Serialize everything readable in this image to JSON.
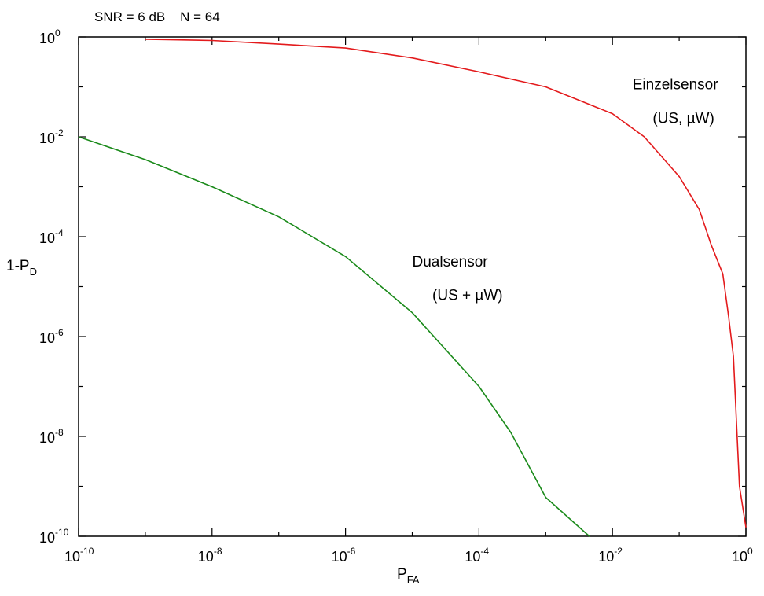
{
  "chart_data": {
    "type": "line",
    "title": "SNR = 6 dB    N = 64",
    "xlabel": {
      "main": "P",
      "sub": "FA"
    },
    "ylabel": {
      "main": "1-P",
      "sub": "D"
    },
    "x_scale": "log",
    "y_scale": "log",
    "xlim": [
      1e-10,
      1
    ],
    "ylim": [
      1e-10,
      1
    ],
    "grid": false,
    "x_ticks": [
      {
        "base": "10",
        "exp": "-10",
        "value": 1e-10
      },
      {
        "base": "10",
        "exp": "-8",
        "value": 1e-08
      },
      {
        "base": "10",
        "exp": "-6",
        "value": 1e-06
      },
      {
        "base": "10",
        "exp": "-4",
        "value": 0.0001
      },
      {
        "base": "10",
        "exp": "-2",
        "value": 0.01
      },
      {
        "base": "10",
        "exp": "0",
        "value": 1
      }
    ],
    "y_ticks": [
      {
        "base": "10",
        "exp": "0",
        "value": 1
      },
      {
        "base": "10",
        "exp": "-2",
        "value": 0.01
      },
      {
        "base": "10",
        "exp": "-4",
        "value": 0.0001
      },
      {
        "base": "10",
        "exp": "-6",
        "value": 1e-06
      },
      {
        "base": "10",
        "exp": "-8",
        "value": 1e-08
      },
      {
        "base": "10",
        "exp": "-10",
        "value": 1e-10
      }
    ],
    "series": [
      {
        "color": "#e31a1c",
        "x": [
          1e-09,
          1e-08,
          1e-07,
          1e-06,
          1e-05,
          0.0001,
          0.001,
          0.01,
          0.03,
          0.1,
          0.2,
          0.3,
          0.45,
          0.55,
          0.65,
          0.8,
          1.0
        ],
        "y": [
          0.9,
          0.85,
          0.72,
          0.6,
          0.38,
          0.2,
          0.1,
          0.029,
          0.01,
          0.0016,
          0.00035,
          7e-05,
          1.8e-05,
          2.5e-06,
          4e-07,
          1e-09,
          1.5e-10
        ]
      },
      {
        "color": "#1a8a1a",
        "x": [
          1e-10,
          1e-09,
          1e-08,
          1e-07,
          1e-06,
          1e-05,
          0.0001,
          0.0003,
          0.001,
          0.0045
        ],
        "y": [
          0.01,
          0.0035,
          0.001,
          0.00025,
          4e-05,
          3e-06,
          1e-07,
          1.2e-08,
          6e-10,
          1e-10
        ]
      }
    ],
    "annotations": [
      {
        "text": "Einzelsensor",
        "x": 0.02,
        "y": 0.09,
        "anchor": "start"
      },
      {
        "text": "(US, µW)",
        "x": 0.04,
        "y": 0.019,
        "anchor": "start"
      },
      {
        "text": "Dualsensor",
        "x": 1e-05,
        "y": 2.5e-05,
        "anchor": "start"
      },
      {
        "text": "(US + µW)",
        "x": 2e-05,
        "y": 5.4e-06,
        "anchor": "start"
      }
    ]
  }
}
